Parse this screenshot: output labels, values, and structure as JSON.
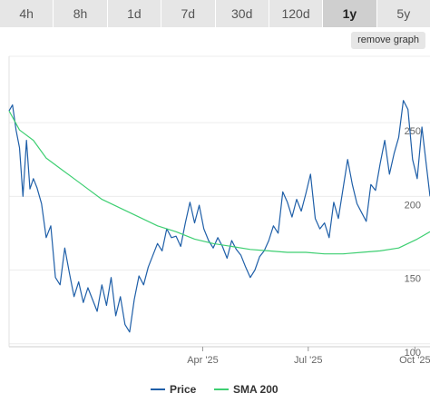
{
  "timeframes": [
    {
      "label": "4h",
      "active": false
    },
    {
      "label": "8h",
      "active": false
    },
    {
      "label": "1d",
      "active": false
    },
    {
      "label": "7d",
      "active": false
    },
    {
      "label": "30d",
      "active": false
    },
    {
      "label": "120d",
      "active": false
    },
    {
      "label": "1y",
      "active": true
    },
    {
      "label": "5y",
      "active": false
    }
  ],
  "remove_graph_label": "remove graph",
  "chart_data": {
    "type": "line",
    "y_ticks": [
      100,
      150,
      200,
      250
    ],
    "ylim": [
      98,
      295
    ],
    "x_ticks": [
      {
        "date": "2025-04-01",
        "label": "Apr '25"
      },
      {
        "date": "2025-07-01",
        "label": "Jul '25"
      },
      {
        "date": "2025-10-01",
        "label": "Oct '25"
      }
    ],
    "xlim": [
      "2024-10-16",
      "2025-10-14"
    ],
    "grid": true,
    "legend_position": "bottom",
    "colors": {
      "price": "#1f5fa8",
      "sma": "#3ecf72"
    },
    "series": [
      {
        "name": "Price",
        "key": "price",
        "x": [
          "2024-10-16",
          "2024-10-19",
          "2024-10-22",
          "2024-10-25",
          "2024-10-28",
          "2024-10-31",
          "2024-11-03",
          "2024-11-06",
          "2024-11-09",
          "2024-11-13",
          "2024-11-17",
          "2024-11-21",
          "2024-11-25",
          "2024-11-29",
          "2024-12-03",
          "2024-12-07",
          "2024-12-11",
          "2024-12-15",
          "2024-12-19",
          "2024-12-23",
          "2024-12-27",
          "2024-12-31",
          "2025-01-04",
          "2025-01-08",
          "2025-01-12",
          "2025-01-16",
          "2025-01-20",
          "2025-01-24",
          "2025-01-28",
          "2025-02-01",
          "2025-02-05",
          "2025-02-09",
          "2025-02-13",
          "2025-02-17",
          "2025-02-21",
          "2025-02-25",
          "2025-03-01",
          "2025-03-05",
          "2025-03-09",
          "2025-03-13",
          "2025-03-17",
          "2025-03-21",
          "2025-03-25",
          "2025-03-29",
          "2025-04-02",
          "2025-04-06",
          "2025-04-10",
          "2025-04-14",
          "2025-04-18",
          "2025-04-22",
          "2025-04-26",
          "2025-04-30",
          "2025-05-04",
          "2025-05-08",
          "2025-05-12",
          "2025-05-16",
          "2025-05-20",
          "2025-05-24",
          "2025-05-28",
          "2025-06-01",
          "2025-06-05",
          "2025-06-09",
          "2025-06-13",
          "2025-06-17",
          "2025-06-21",
          "2025-06-25",
          "2025-06-29",
          "2025-07-03",
          "2025-07-07",
          "2025-07-11",
          "2025-07-15",
          "2025-07-19",
          "2025-07-23",
          "2025-07-27",
          "2025-07-31",
          "2025-08-04",
          "2025-08-08",
          "2025-08-12",
          "2025-08-16",
          "2025-08-20",
          "2025-08-24",
          "2025-08-28",
          "2025-09-01",
          "2025-09-05",
          "2025-09-09",
          "2025-09-13",
          "2025-09-17",
          "2025-09-21",
          "2025-09-25",
          "2025-09-29",
          "2025-10-03",
          "2025-10-07",
          "2025-10-11",
          "2025-10-14"
        ],
        "y": [
          258,
          262,
          245,
          233,
          200,
          238,
          205,
          212,
          206,
          195,
          172,
          180,
          145,
          140,
          165,
          148,
          132,
          142,
          128,
          138,
          130,
          122,
          140,
          126,
          145,
          119,
          132,
          113,
          108,
          130,
          146,
          140,
          152,
          160,
          168,
          163,
          178,
          172,
          173,
          166,
          182,
          196,
          182,
          194,
          178,
          170,
          165,
          172,
          166,
          158,
          170,
          164,
          160,
          152,
          145,
          150,
          159,
          163,
          170,
          180,
          175,
          203,
          196,
          186,
          198,
          190,
          202,
          215,
          185,
          178,
          182,
          172,
          196,
          185,
          205,
          225,
          208,
          195,
          189,
          183,
          208,
          204,
          222,
          238,
          215,
          229,
          240,
          265,
          259,
          225,
          212,
          247,
          220,
          200
        ]
      },
      {
        "name": "SMA 200",
        "key": "sma",
        "x": [
          "2024-10-16",
          "2024-10-25",
          "2024-11-06",
          "2024-11-17",
          "2024-11-29",
          "2024-12-11",
          "2024-12-23",
          "2025-01-04",
          "2025-01-20",
          "2025-02-05",
          "2025-02-21",
          "2025-03-09",
          "2025-03-25",
          "2025-04-10",
          "2025-04-26",
          "2025-05-12",
          "2025-05-28",
          "2025-06-13",
          "2025-06-29",
          "2025-07-15",
          "2025-07-31",
          "2025-08-16",
          "2025-09-01",
          "2025-09-17",
          "2025-10-03",
          "2025-10-14"
        ],
        "y": [
          258,
          245,
          238,
          226,
          219,
          212,
          205,
          198,
          192,
          186,
          180,
          176,
          171,
          168,
          166,
          164,
          163,
          162,
          162,
          161,
          161,
          162,
          163,
          165,
          171,
          176
        ]
      }
    ]
  }
}
